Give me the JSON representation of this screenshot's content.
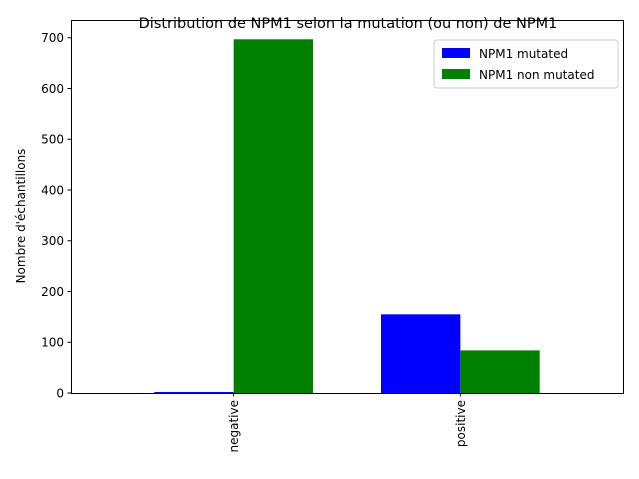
{
  "chart_data": {
    "type": "bar",
    "title": "Distribution de NPM1 selon la mutation (ou non) de NPM1",
    "xlabel": "",
    "ylabel": "Nombre d'échantillons",
    "categories": [
      "negative",
      "positive"
    ],
    "series": [
      {
        "name": "NPM1 mutated",
        "color": "#0000ff",
        "values": [
          2,
          155
        ]
      },
      {
        "name": "NPM1 non mutated",
        "color": "#008000",
        "values": [
          697,
          84
        ]
      }
    ],
    "ylim": [
      0,
      735
    ],
    "yticks": [
      0,
      100,
      200,
      300,
      400,
      500,
      600,
      700
    ],
    "grid": false,
    "legend_position": "top-right"
  }
}
